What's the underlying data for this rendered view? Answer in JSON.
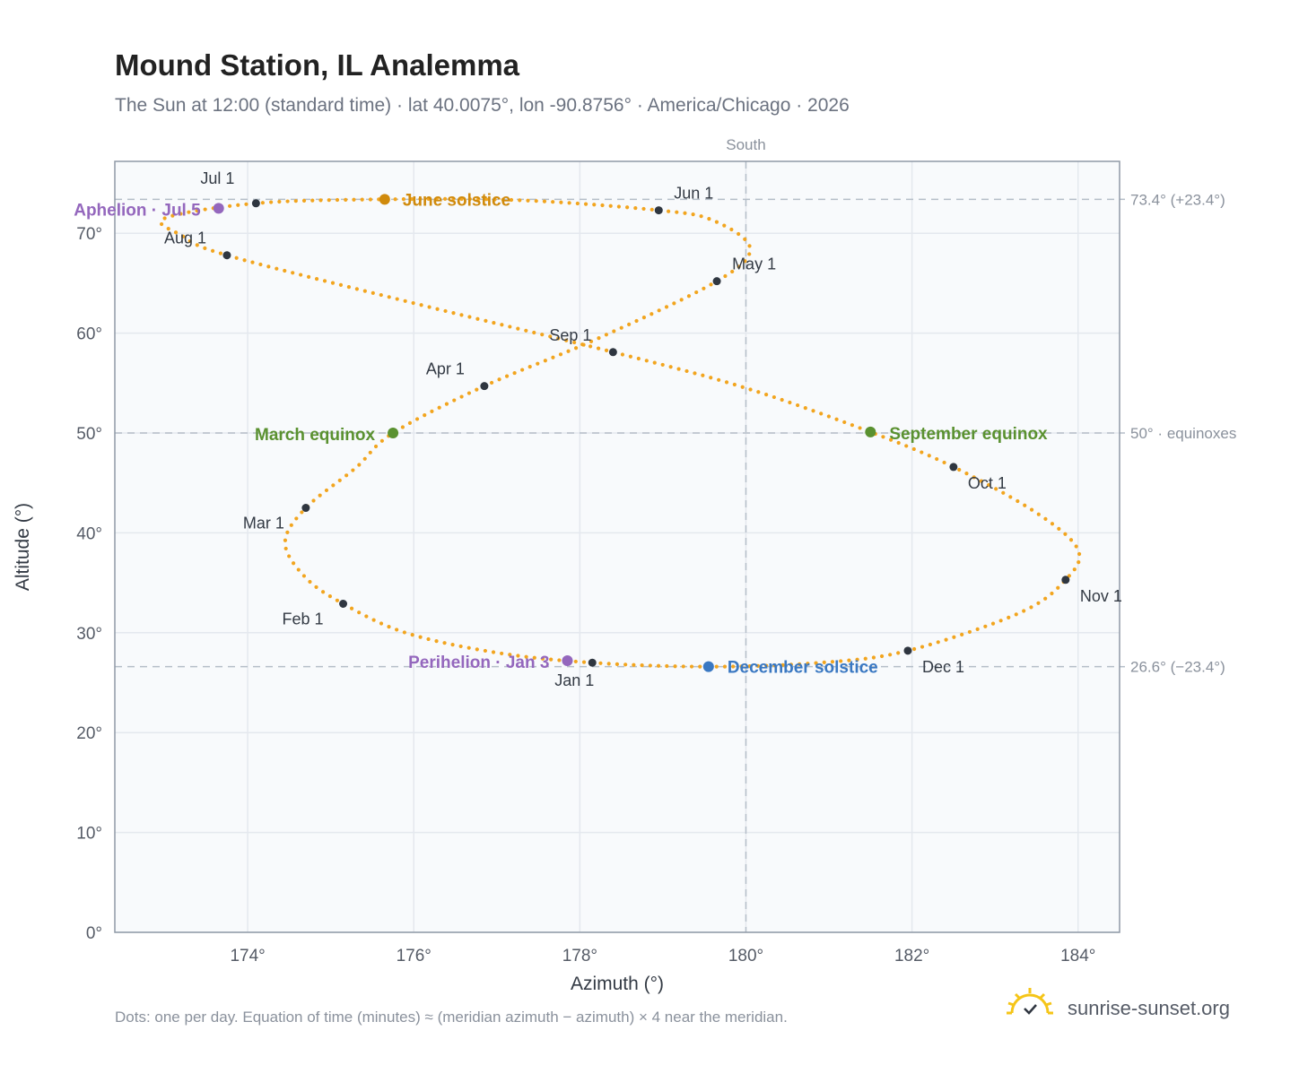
{
  "title": "Mound Station, IL Analemma",
  "subtitle": "The Sun at 12:00 (standard time) · lat 40.0075°, lon -90.8756° · America/Chicago · 2026",
  "footnote": "Dots: one per day. Equation of time (minutes) ≈ (meridian azimuth − azimuth) × 4 near the meridian.",
  "brand": {
    "name": "sunrise-sunset.org",
    "icon": "sun-check-icon"
  },
  "colors": {
    "curve": "#f2a51f",
    "month_dot": "#2f3640",
    "solstice_june": "#d08a0c",
    "solstice_december": "#3a78c2",
    "equinox": "#5a9130",
    "apsis": "#9467bd",
    "grid": "#e4e8ee",
    "plot_bg": "#f8fafc",
    "frame": "#8f99a6",
    "ref_line": "#b5bec8"
  },
  "chart_data": {
    "type": "scatter",
    "title": "Mound Station, IL Analemma",
    "xlabel": "Azimuth (°)",
    "ylabel": "Altitude (°)",
    "xlim": [
      172.4,
      184.5
    ],
    "ylim": [
      0,
      77.2
    ],
    "x_ticks": [
      174,
      176,
      178,
      180,
      182,
      184
    ],
    "y_ticks": [
      0,
      10,
      20,
      30,
      40,
      50,
      60,
      70
    ],
    "tick_suffix": "°",
    "grid": true,
    "meridian": {
      "azimuth": 180,
      "label": "South"
    },
    "reference_lines": [
      {
        "altitude": 73.4,
        "label": "73.4° (+23.4°)"
      },
      {
        "altitude": 50.0,
        "label": "50° · equinoxes"
      },
      {
        "altitude": 26.6,
        "label": "26.6° (−23.4°)"
      }
    ],
    "months": [
      {
        "label": "Jan 1",
        "azimuth": 178.15,
        "altitude": 27.0
      },
      {
        "label": "Feb 1",
        "azimuth": 175.15,
        "altitude": 32.9
      },
      {
        "label": "Mar 1",
        "azimuth": 174.7,
        "altitude": 42.5
      },
      {
        "label": "Apr 1",
        "azimuth": 176.85,
        "altitude": 54.7
      },
      {
        "label": "May 1",
        "azimuth": 179.65,
        "altitude": 65.2
      },
      {
        "label": "Jun 1",
        "azimuth": 178.95,
        "altitude": 72.3
      },
      {
        "label": "Jul 1",
        "azimuth": 174.1,
        "altitude": 73.0
      },
      {
        "label": "Aug 1",
        "azimuth": 173.75,
        "altitude": 67.8
      },
      {
        "label": "Sep 1",
        "azimuth": 178.4,
        "altitude": 58.1
      },
      {
        "label": "Oct 1",
        "azimuth": 182.5,
        "altitude": 46.6
      },
      {
        "label": "Nov 1",
        "azimuth": 183.85,
        "altitude": 35.3
      },
      {
        "label": "Dec 1",
        "azimuth": 181.95,
        "altitude": 28.2
      }
    ],
    "events": [
      {
        "label": "June solstice",
        "azimuth": 175.65,
        "altitude": 73.4,
        "kind": "solstice_june"
      },
      {
        "label": "December solstice",
        "azimuth": 179.55,
        "altitude": 26.6,
        "kind": "solstice_december"
      },
      {
        "label": "March equinox",
        "azimuth": 175.75,
        "altitude": 50.0,
        "kind": "equinox"
      },
      {
        "label": "September equinox",
        "azimuth": 181.5,
        "altitude": 50.1,
        "kind": "equinox"
      },
      {
        "label": "Aphelion · Jul 5",
        "azimuth": 173.65,
        "altitude": 72.5,
        "kind": "apsis"
      },
      {
        "label": "Perihelion · Jan 3",
        "azimuth": 177.85,
        "altitude": 27.2,
        "kind": "apsis"
      }
    ],
    "curve_points": [
      [
        178.15,
        27.0
      ],
      [
        177.0,
        28.0
      ],
      [
        175.9,
        30.0
      ],
      [
        175.15,
        32.9
      ],
      [
        174.7,
        35.5
      ],
      [
        174.45,
        39.0
      ],
      [
        174.7,
        42.5
      ],
      [
        175.3,
        46.5
      ],
      [
        175.75,
        50.0
      ],
      [
        176.85,
        54.7
      ],
      [
        178.2,
        59.4
      ],
      [
        179.65,
        65.2
      ],
      [
        180.05,
        68.5
      ],
      [
        179.6,
        71.3
      ],
      [
        178.95,
        72.3
      ],
      [
        177.3,
        73.3
      ],
      [
        175.65,
        73.4
      ],
      [
        174.1,
        73.0
      ],
      [
        173.0,
        71.5
      ],
      [
        173.2,
        69.8
      ],
      [
        173.75,
        67.8
      ],
      [
        176.0,
        63.0
      ],
      [
        178.4,
        58.1
      ],
      [
        180.0,
        54.5
      ],
      [
        181.5,
        50.1
      ],
      [
        182.5,
        46.6
      ],
      [
        183.5,
        42.0
      ],
      [
        184.0,
        38.3
      ],
      [
        183.85,
        35.3
      ],
      [
        183.3,
        32.0
      ],
      [
        181.95,
        28.2
      ],
      [
        180.9,
        27.0
      ],
      [
        179.55,
        26.6
      ],
      [
        178.15,
        27.0
      ]
    ]
  }
}
